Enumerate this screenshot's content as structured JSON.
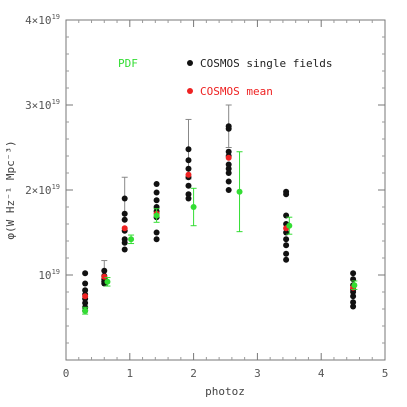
{
  "chart_data": {
    "type": "scatter",
    "xlabel": "photoz",
    "ylabel": "φ(W Hz⁻¹ Mpc⁻³)",
    "xlim": [
      0,
      5
    ],
    "ylim": [
      0,
      4e+19
    ],
    "x_ticks": [
      0,
      1,
      2,
      3,
      4,
      5
    ],
    "x_tick_labels": [
      "0",
      "1",
      "2",
      "3",
      "4",
      "5"
    ],
    "y_ticks": [
      1e+19,
      2e+19,
      3e+19,
      4e+19
    ],
    "y_tick_labels": [
      {
        "mantissa": "10",
        "exp": "19"
      },
      {
        "mantissa": "2×10",
        "exp": "19"
      },
      {
        "mantissa": "3×10",
        "exp": "19"
      },
      {
        "mantissa": "4×10",
        "exp": "19"
      }
    ],
    "grid": false,
    "legend": [
      {
        "label": "PDF",
        "color": "#33dd33"
      },
      {
        "label": "COSMOS single fields",
        "color": "#222222"
      },
      {
        "label": "COSMOS mean",
        "color": "#ee2222"
      }
    ],
    "series": [
      {
        "name": "COSMOS single fields",
        "color": "#111111",
        "points": [
          {
            "x": 0.3,
            "y": 1.02e+19,
            "err": 0
          },
          {
            "x": 0.3,
            "y": 9e+18,
            "err": 0
          },
          {
            "x": 0.3,
            "y": 8.2e+18,
            "err": 0
          },
          {
            "x": 0.3,
            "y": 7.7e+18,
            "err": 0
          },
          {
            "x": 0.3,
            "y": 7.2e+18,
            "err": 0
          },
          {
            "x": 0.3,
            "y": 6.7e+18,
            "err": 0
          },
          {
            "x": 0.3,
            "y": 6.2e+18,
            "err": 0
          },
          {
            "x": 0.3,
            "y": 5.8e+18,
            "err": 0
          },
          {
            "x": 0.6,
            "y": 1.05e+19,
            "err": 1.2e+18
          },
          {
            "x": 0.6,
            "y": 9.9e+18,
            "err": 0
          },
          {
            "x": 0.6,
            "y": 9.5e+18,
            "err": 0
          },
          {
            "x": 0.6,
            "y": 9.2e+18,
            "err": 0
          },
          {
            "x": 0.6,
            "y": 9e+18,
            "err": 0
          },
          {
            "x": 0.92,
            "y": 1.9e+19,
            "err": 2.5e+18
          },
          {
            "x": 0.92,
            "y": 1.72e+19,
            "err": 0
          },
          {
            "x": 0.92,
            "y": 1.65e+19,
            "err": 0
          },
          {
            "x": 0.92,
            "y": 1.52e+19,
            "err": 0
          },
          {
            "x": 0.92,
            "y": 1.42e+19,
            "err": 0
          },
          {
            "x": 0.92,
            "y": 1.38e+19,
            "err": 0
          },
          {
            "x": 0.92,
            "y": 1.3e+19,
            "err": 0
          },
          {
            "x": 1.42,
            "y": 2.07e+19,
            "err": 0
          },
          {
            "x": 1.42,
            "y": 1.97e+19,
            "err": 0
          },
          {
            "x": 1.42,
            "y": 1.88e+19,
            "err": 0
          },
          {
            "x": 1.42,
            "y": 1.8e+19,
            "err": 0
          },
          {
            "x": 1.42,
            "y": 1.75e+19,
            "err": 0
          },
          {
            "x": 1.42,
            "y": 1.68e+19,
            "err": 0
          },
          {
            "x": 1.42,
            "y": 1.5e+19,
            "err": 0
          },
          {
            "x": 1.42,
            "y": 1.42e+19,
            "err": 0
          },
          {
            "x": 1.92,
            "y": 2.48e+19,
            "err": 3.5e+18
          },
          {
            "x": 1.92,
            "y": 2.35e+19,
            "err": 0
          },
          {
            "x": 1.92,
            "y": 2.25e+19,
            "err": 0
          },
          {
            "x": 1.92,
            "y": 2.15e+19,
            "err": 0
          },
          {
            "x": 1.92,
            "y": 2.05e+19,
            "err": 0
          },
          {
            "x": 1.92,
            "y": 1.95e+19,
            "err": 0
          },
          {
            "x": 1.92,
            "y": 1.9e+19,
            "err": 0
          },
          {
            "x": 2.55,
            "y": 2.75e+19,
            "err": 2.5e+18
          },
          {
            "x": 2.55,
            "y": 2.72e+19,
            "err": 0
          },
          {
            "x": 2.55,
            "y": 2.45e+19,
            "err": 0
          },
          {
            "x": 2.55,
            "y": 2.4e+19,
            "err": 0
          },
          {
            "x": 2.55,
            "y": 2.3e+19,
            "err": 0
          },
          {
            "x": 2.55,
            "y": 2.25e+19,
            "err": 0
          },
          {
            "x": 2.55,
            "y": 2.2e+19,
            "err": 0
          },
          {
            "x": 2.55,
            "y": 2.1e+19,
            "err": 0
          },
          {
            "x": 2.55,
            "y": 2e+19,
            "err": 0
          },
          {
            "x": 3.45,
            "y": 1.98e+19,
            "err": 0
          },
          {
            "x": 3.45,
            "y": 1.95e+19,
            "err": 0
          },
          {
            "x": 3.45,
            "y": 1.7e+19,
            "err": 0
          },
          {
            "x": 3.45,
            "y": 1.6e+19,
            "err": 0
          },
          {
            "x": 3.45,
            "y": 1.5e+19,
            "err": 0
          },
          {
            "x": 3.45,
            "y": 1.42e+19,
            "err": 0
          },
          {
            "x": 3.45,
            "y": 1.35e+19,
            "err": 0
          },
          {
            "x": 3.45,
            "y": 1.25e+19,
            "err": 0
          },
          {
            "x": 3.45,
            "y": 1.18e+19,
            "err": 0
          },
          {
            "x": 4.5,
            "y": 1.02e+19,
            "err": 0
          },
          {
            "x": 4.5,
            "y": 9.5e+18,
            "err": 0
          },
          {
            "x": 4.5,
            "y": 8.8e+18,
            "err": 0
          },
          {
            "x": 4.5,
            "y": 8.3e+18,
            "err": 0
          },
          {
            "x": 4.5,
            "y": 8e+18,
            "err": 0
          },
          {
            "x": 4.5,
            "y": 7.5e+18,
            "err": 0
          },
          {
            "x": 4.5,
            "y": 6.8e+18,
            "err": 0
          },
          {
            "x": 4.5,
            "y": 6.3e+18,
            "err": 0
          }
        ]
      },
      {
        "name": "COSMOS mean",
        "color": "#ee2222",
        "points": [
          {
            "x": 0.3,
            "y": 7.5e+18
          },
          {
            "x": 0.6,
            "y": 9.8e+18
          },
          {
            "x": 0.92,
            "y": 1.55e+19
          },
          {
            "x": 1.42,
            "y": 1.72e+19
          },
          {
            "x": 1.92,
            "y": 2.18e+19
          },
          {
            "x": 2.55,
            "y": 2.38e+19
          },
          {
            "x": 3.45,
            "y": 1.55e+19
          },
          {
            "x": 4.5,
            "y": 8.5e+18
          }
        ]
      },
      {
        "name": "PDF",
        "color": "#33dd33",
        "points": [
          {
            "x": 0.3,
            "y": 5.8e+18,
            "err": 4e+17
          },
          {
            "x": 0.65,
            "y": 9.2e+18,
            "err": 5e+17
          },
          {
            "x": 1.02,
            "y": 1.42e+19,
            "err": 5e+17
          },
          {
            "x": 1.42,
            "y": 1.7e+19,
            "err": 8e+17
          },
          {
            "x": 2.0,
            "y": 1.8e+19,
            "err": 2.2e+18
          },
          {
            "x": 2.72,
            "y": 1.98e+19,
            "err": 4.7e+18
          },
          {
            "x": 3.5,
            "y": 1.58e+19,
            "err": 1e+18
          },
          {
            "x": 4.52,
            "y": 8.8e+18,
            "err": 5e+17
          }
        ]
      }
    ]
  }
}
